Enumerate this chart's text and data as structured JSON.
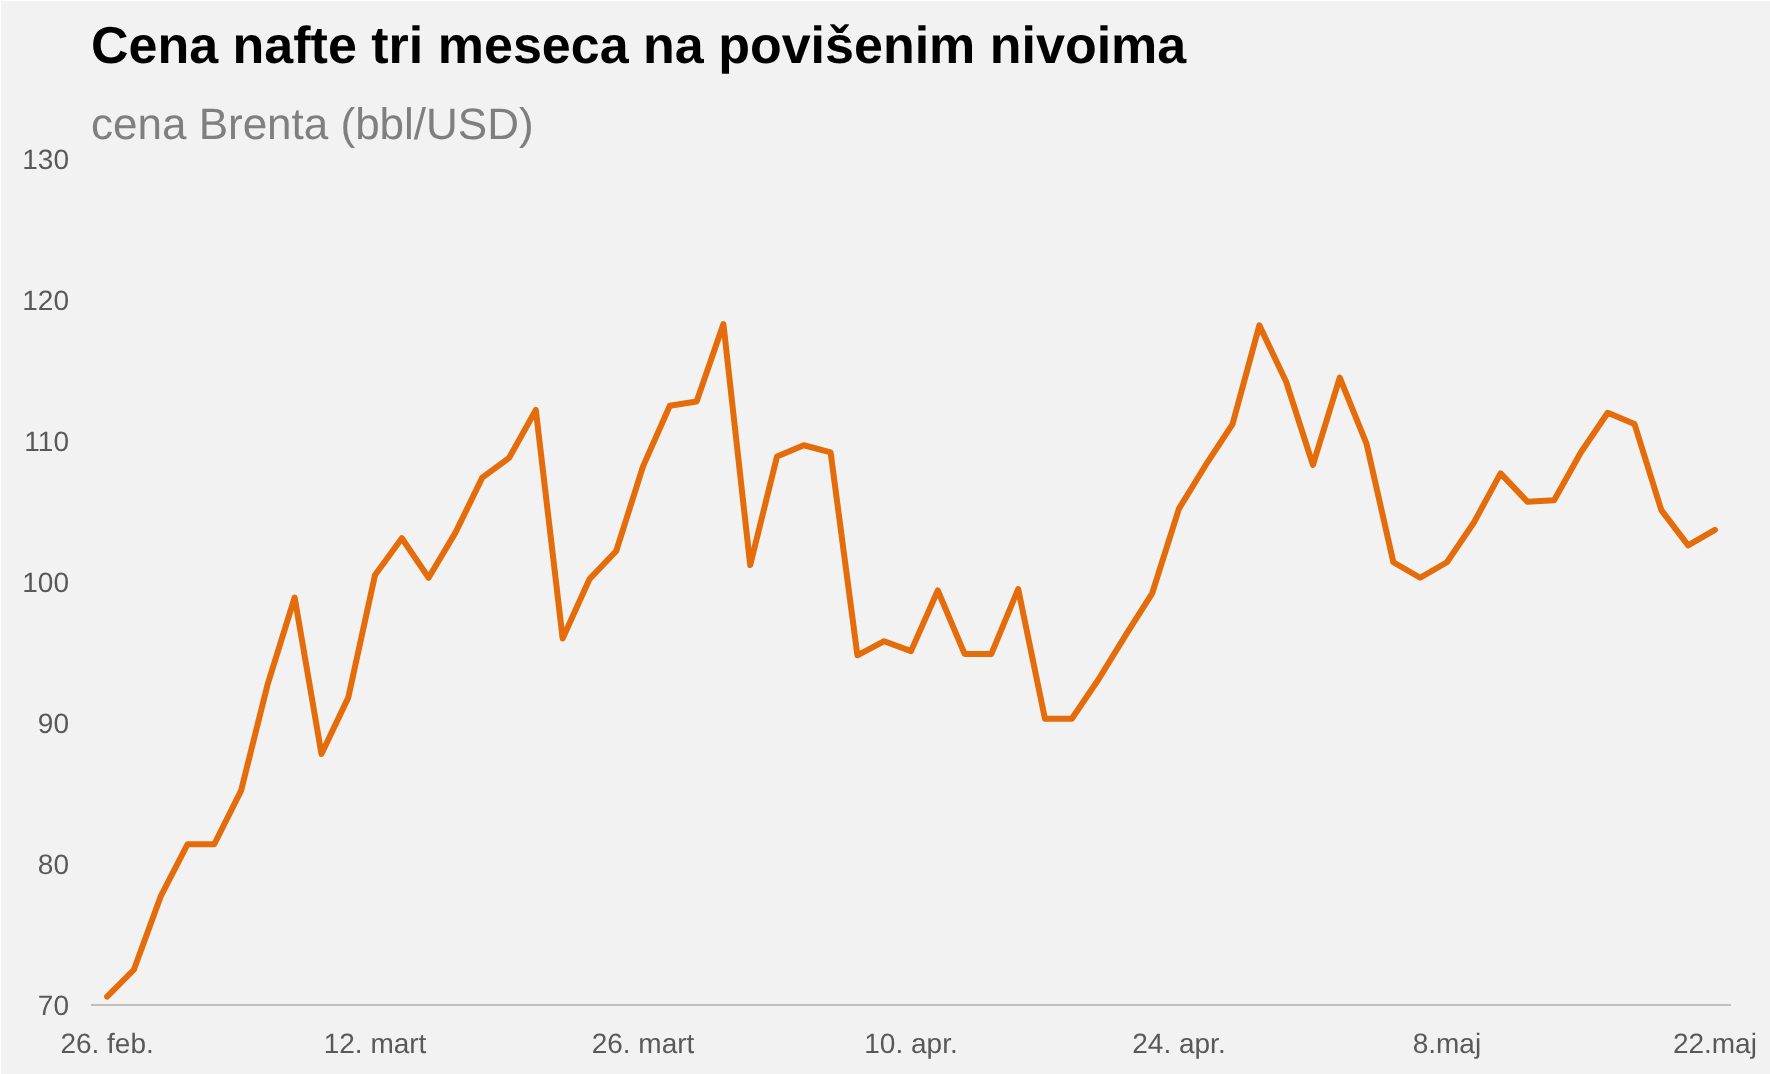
{
  "chart_data": {
    "type": "line",
    "title": "Cena nafte tri meseca na povišenim nivoima",
    "subtitle": "cena Brenta (bbl/USD)",
    "categories": [
      "26. feb.",
      null,
      null,
      null,
      null,
      null,
      null,
      null,
      null,
      null,
      "12. mart",
      null,
      null,
      null,
      null,
      null,
      null,
      null,
      null,
      null,
      "26. mart",
      null,
      null,
      null,
      null,
      null,
      null,
      null,
      null,
      null,
      "10. apr.",
      null,
      null,
      null,
      null,
      null,
      null,
      null,
      null,
      null,
      "24. apr.",
      null,
      null,
      null,
      null,
      null,
      null,
      null,
      null,
      null,
      "8.maj",
      null,
      null,
      null,
      null,
      null,
      null,
      null,
      null,
      null,
      "22.maj"
    ],
    "values": [
      70.6,
      72.5,
      77.7,
      81.4,
      81.4,
      85.2,
      92.8,
      98.9,
      87.8,
      91.8,
      100.5,
      103.1,
      100.3,
      103.5,
      107.4,
      108.8,
      112.2,
      96.0,
      100.2,
      102.2,
      108.2,
      112.5,
      112.8,
      118.3,
      101.2,
      108.9,
      109.7,
      109.2,
      94.8,
      95.8,
      95.1,
      99.4,
      94.9,
      94.9,
      99.5,
      90.3,
      90.3,
      93.1,
      96.2,
      99.2,
      105.2,
      108.3,
      111.2,
      118.2,
      114.2,
      108.3,
      114.5,
      109.8,
      101.4,
      100.3,
      101.4,
      104.2,
      107.7,
      105.7,
      105.8,
      109.2,
      112.0,
      111.2,
      105.1,
      102.6,
      103.7
    ],
    "color": "#e46c0a",
    "ylim": [
      70,
      130
    ],
    "yticks": [
      70,
      80,
      90,
      100,
      110,
      120,
      130
    ],
    "grid": false
  }
}
